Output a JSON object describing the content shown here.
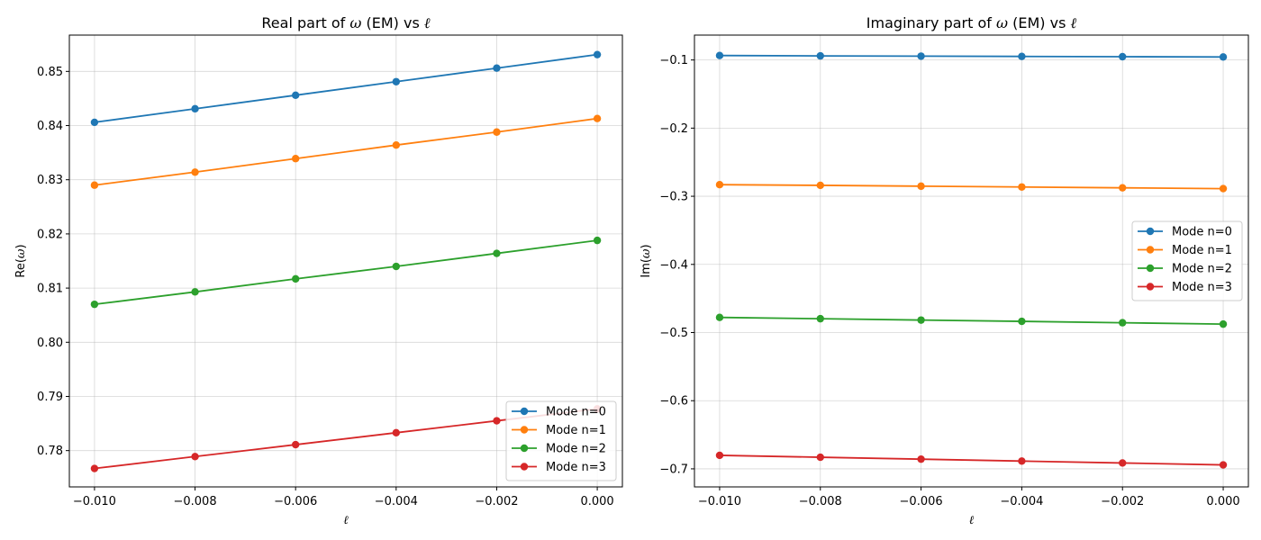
{
  "chart_data": [
    {
      "type": "line",
      "title_prefix": "Real part of ",
      "title_omega": "ω",
      "title_suffix": " (EM) vs ",
      "title_ell": "ℓ",
      "xlabel": "ℓ",
      "ylabel_prefix": "Re(",
      "ylabel_omega": "ω",
      "ylabel_suffix": ")",
      "xlim": [
        -0.0105,
        0.0005
      ],
      "ylim": [
        0.7733,
        0.8567
      ],
      "xticks": [
        -0.01,
        -0.008,
        -0.006,
        -0.004,
        -0.002,
        0.0
      ],
      "xtick_labels": [
        "−0.010",
        "−0.008",
        "−0.006",
        "−0.004",
        "−0.002",
        "0.000"
      ],
      "yticks": [
        0.78,
        0.79,
        0.8,
        0.81,
        0.82,
        0.83,
        0.84,
        0.85
      ],
      "ytick_labels": [
        "0.78",
        "0.79",
        "0.80",
        "0.81",
        "0.82",
        "0.83",
        "0.84",
        "0.85"
      ],
      "grid": true,
      "legend_position": "lower-right",
      "x": [
        -0.01,
        -0.008,
        -0.006,
        -0.004,
        -0.002,
        0.0
      ],
      "series": [
        {
          "name": "Mode n=0",
          "color": "#1f77b4",
          "values": [
            0.8406,
            0.8431,
            0.8456,
            0.8481,
            0.8506,
            0.8531
          ]
        },
        {
          "name": "Mode n=1",
          "color": "#ff7f0e",
          "values": [
            0.829,
            0.8314,
            0.8339,
            0.8364,
            0.8388,
            0.8413
          ]
        },
        {
          "name": "Mode n=2",
          "color": "#2ca02c",
          "values": [
            0.807,
            0.8093,
            0.8117,
            0.814,
            0.8164,
            0.8188
          ]
        },
        {
          "name": "Mode n=3",
          "color": "#d62728",
          "values": [
            0.7767,
            0.7789,
            0.7811,
            0.7833,
            0.7855,
            0.7877
          ]
        }
      ]
    },
    {
      "type": "line",
      "title_prefix": "Imaginary part of ",
      "title_omega": "ω",
      "title_suffix": " (EM) vs ",
      "title_ell": "ℓ",
      "xlabel": "ℓ",
      "ylabel_prefix": "Im(",
      "ylabel_omega": "ω",
      "ylabel_suffix": ")",
      "xlim": [
        -0.0105,
        0.0005
      ],
      "ylim": [
        -0.7265,
        -0.0635
      ],
      "xticks": [
        -0.01,
        -0.008,
        -0.006,
        -0.004,
        -0.002,
        0.0
      ],
      "xtick_labels": [
        "−0.010",
        "−0.008",
        "−0.006",
        "−0.004",
        "−0.002",
        "0.000"
      ],
      "yticks": [
        -0.7,
        -0.6,
        -0.5,
        -0.4,
        -0.3,
        -0.2,
        -0.1
      ],
      "ytick_labels": [
        "−0.7",
        "−0.6",
        "−0.5",
        "−0.4",
        "−0.3",
        "−0.2",
        "−0.1"
      ],
      "grid": true,
      "legend_position": "center-right",
      "x": [
        -0.01,
        -0.008,
        -0.006,
        -0.004,
        -0.002,
        0.0
      ],
      "series": [
        {
          "name": "Mode n=0",
          "color": "#1f77b4",
          "values": [
            -0.0935,
            -0.094,
            -0.0944,
            -0.0948,
            -0.0952,
            -0.0956
          ]
        },
        {
          "name": "Mode n=1",
          "color": "#ff7f0e",
          "values": [
            -0.283,
            -0.284,
            -0.2852,
            -0.2864,
            -0.2876,
            -0.2888
          ]
        },
        {
          "name": "Mode n=2",
          "color": "#2ca02c",
          "values": [
            -0.4778,
            -0.4797,
            -0.4817,
            -0.4836,
            -0.4856,
            -0.4876
          ]
        },
        {
          "name": "Mode n=3",
          "color": "#d62728",
          "values": [
            -0.6802,
            -0.683,
            -0.6858,
            -0.6886,
            -0.6914,
            -0.6942
          ]
        }
      ]
    }
  ]
}
